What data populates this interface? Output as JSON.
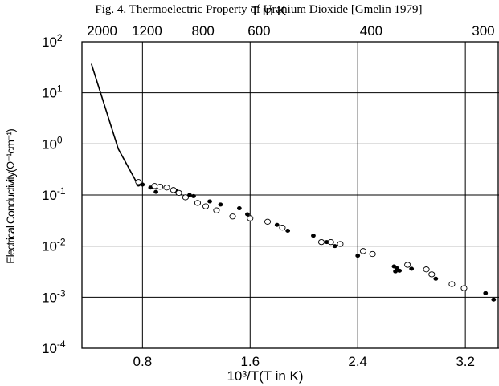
{
  "chart_data": {
    "type": "scatter",
    "title": "Fig. 4. Thermoelectric Property of Uranium Dioxide [Gmelin 1979]",
    "xlabel": "10³/T(T in K)",
    "ylabel": "Electrical Conductivity(Ω⁻¹cm⁻¹)",
    "top_axis_label": "T in K",
    "y_scale": "log",
    "xlim": [
      0.35,
      3.45
    ],
    "ylim_exponents": [
      -4,
      2
    ],
    "x_ticks": [
      "0.8",
      "1.6",
      "2.4",
      "3.2"
    ],
    "x_tick_values": [
      0.8,
      1.6,
      2.4,
      3.2
    ],
    "top_ticks": [
      "2000",
      "1200",
      "800",
      "600",
      "400",
      "300"
    ],
    "top_tick_values": [
      2000,
      1200,
      800,
      600,
      400,
      300
    ],
    "y_ticks": [
      {
        "base": "10",
        "exp": "2",
        "value": 2
      },
      {
        "base": "10",
        "exp": "1",
        "value": 1
      },
      {
        "base": "10",
        "exp": "0",
        "value": 0
      },
      {
        "base": "10",
        "exp": "-1",
        "value": -1
      },
      {
        "base": "10",
        "exp": "-2",
        "value": -2
      },
      {
        "base": "10",
        "exp": "-3",
        "value": -3
      },
      {
        "base": "10",
        "exp": "-4",
        "value": -4
      }
    ],
    "grid": true,
    "series": [
      {
        "marker": "line",
        "color": "#000000",
        "x": [
          0.42,
          0.62,
          0.76
        ],
        "y": [
          37,
          0.8,
          0.17
        ]
      },
      {
        "marker": "filled-circle",
        "color": "#000000",
        "x": [
          0.77,
          0.8,
          0.86,
          0.9,
          1.05,
          1.15,
          1.18,
          1.3,
          1.38,
          1.52,
          1.58,
          1.8,
          1.88,
          2.07,
          2.17,
          2.23,
          2.4,
          2.67,
          2.69,
          2.71,
          2.68,
          2.8,
          2.98,
          3.35,
          3.41
        ],
        "y": [
          0.16,
          0.16,
          0.14,
          0.115,
          0.12,
          0.1,
          0.095,
          0.075,
          0.065,
          0.055,
          0.042,
          0.026,
          0.02,
          0.016,
          0.012,
          0.01,
          0.0065,
          0.004,
          0.0037,
          0.0033,
          0.0032,
          0.0036,
          0.0023,
          0.0012,
          0.0009
        ]
      },
      {
        "marker": "open-circle",
        "color": "#000000",
        "x": [
          0.77,
          0.89,
          0.93,
          0.98,
          1.03,
          1.07,
          1.12,
          1.21,
          1.27,
          1.35,
          1.47,
          1.6,
          1.73,
          1.84,
          2.13,
          2.2,
          2.27,
          2.44,
          2.51,
          2.77,
          2.91,
          2.95,
          3.1,
          3.19
        ],
        "y": [
          0.18,
          0.15,
          0.145,
          0.14,
          0.125,
          0.11,
          0.09,
          0.07,
          0.06,
          0.05,
          0.038,
          0.035,
          0.03,
          0.023,
          0.012,
          0.012,
          0.011,
          0.008,
          0.007,
          0.0043,
          0.0035,
          0.0028,
          0.0018,
          0.0015
        ]
      }
    ]
  }
}
